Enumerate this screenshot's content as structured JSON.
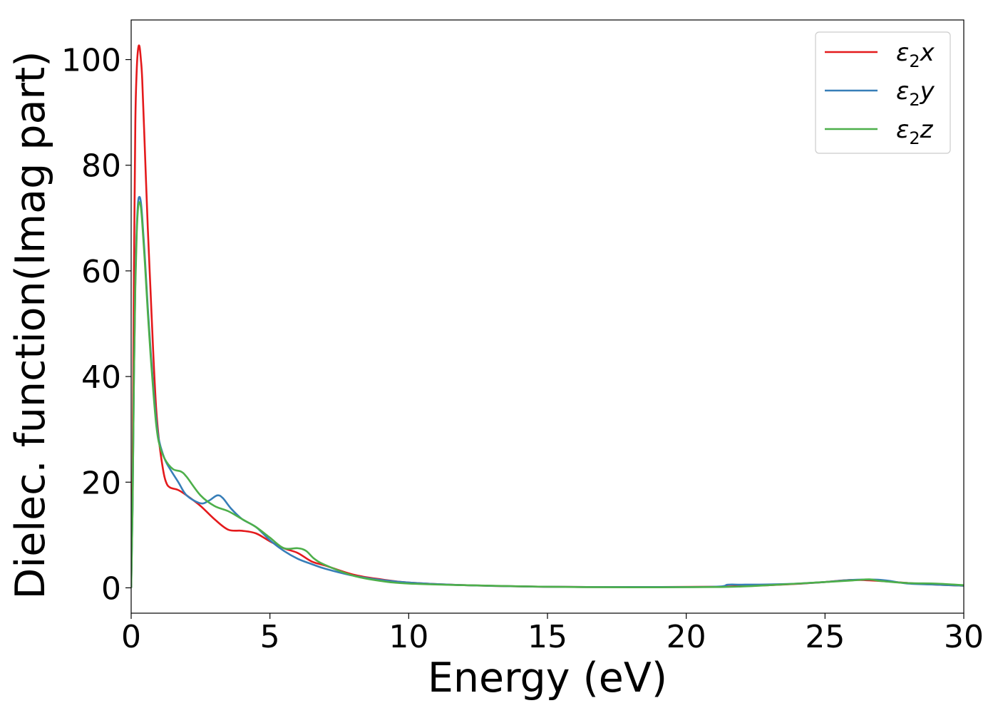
{
  "chart_data": {
    "type": "line",
    "title": "",
    "xlabel": "Energy (eV)",
    "ylabel": "Dielec. function(Imag part)",
    "xlim": [
      0,
      30
    ],
    "ylim": [
      -4.8,
      107.5
    ],
    "xticks": [
      0,
      5,
      10,
      15,
      20,
      25,
      30
    ],
    "yticks": [
      0,
      20,
      40,
      60,
      80,
      100
    ],
    "grid": false,
    "legend_position": "top-right",
    "series": [
      {
        "name": "ε₂x",
        "legend_base": "ε",
        "legend_sub": "2",
        "legend_var": "x",
        "color": "#e41a1c",
        "x": [
          0,
          0.05,
          0.1,
          0.15,
          0.2,
          0.25,
          0.3,
          0.35,
          0.4,
          0.5,
          0.6,
          0.7,
          0.8,
          0.9,
          1.0,
          1.1,
          1.2,
          1.3,
          1.4,
          1.5,
          1.7,
          2.0,
          2.5,
          3.0,
          3.5,
          4.0,
          4.5,
          5.0,
          5.5,
          6.0,
          6.5,
          7.0,
          8.0,
          9.0,
          10.0,
          12.0,
          15.0,
          18.0,
          21.0,
          22.0,
          23.0,
          24.0,
          25.0,
          26.0,
          27.0,
          28.0,
          29.0,
          30.0
        ],
        "y": [
          0,
          20,
          60,
          88,
          98,
          102,
          102.5,
          100,
          96,
          82,
          68,
          56,
          44,
          34,
          28,
          24,
          21,
          19.5,
          19,
          18.8,
          18.5,
          17.5,
          15.5,
          13,
          11,
          10.8,
          10.3,
          8.8,
          7.5,
          6.6,
          5,
          4.2,
          2.5,
          1.6,
          1.0,
          0.5,
          0.2,
          0.15,
          0.2,
          0.35,
          0.5,
          0.75,
          1.1,
          1.5,
          1.3,
          0.9,
          0.6,
          0.4
        ]
      },
      {
        "name": "ε₂y",
        "legend_base": "ε",
        "legend_sub": "2",
        "legend_var": "y",
        "color": "#377eb8",
        "x": [
          0,
          0.05,
          0.1,
          0.15,
          0.2,
          0.25,
          0.3,
          0.35,
          0.4,
          0.5,
          0.6,
          0.7,
          0.8,
          0.9,
          1.0,
          1.2,
          1.4,
          1.7,
          2.0,
          2.5,
          2.8,
          3.1,
          3.3,
          3.6,
          4.0,
          4.5,
          5.0,
          5.5,
          6.0,
          6.5,
          7.0,
          8.0,
          9.0,
          10.0,
          12.0,
          15.0,
          18.0,
          21.0,
          21.5,
          22.0,
          23.0,
          24.0,
          25.0,
          26.0,
          27.0,
          28.0,
          29.0,
          30.0
        ],
        "y": [
          0,
          15,
          40,
          58,
          68,
          73,
          74,
          73,
          70,
          62,
          53,
          45,
          38,
          32,
          28,
          24.5,
          22.5,
          20,
          17.5,
          16,
          16.5,
          17.5,
          17,
          15,
          13,
          11.5,
          9,
          7,
          5.5,
          4.5,
          3.6,
          2.3,
          1.5,
          1.0,
          0.5,
          0.2,
          0.15,
          0.2,
          0.6,
          0.6,
          0.65,
          0.8,
          1.1,
          1.5,
          1.5,
          0.8,
          0.6,
          0.4
        ]
      },
      {
        "name": "ε₂z",
        "legend_base": "ε",
        "legend_sub": "2",
        "legend_var": "z",
        "color": "#4daf4a",
        "x": [
          0,
          0.05,
          0.1,
          0.15,
          0.2,
          0.25,
          0.3,
          0.35,
          0.4,
          0.5,
          0.6,
          0.7,
          0.8,
          0.9,
          1.0,
          1.2,
          1.5,
          1.8,
          2.0,
          2.5,
          3.0,
          3.5,
          4.0,
          4.5,
          5.0,
          5.5,
          6.0,
          6.3,
          6.6,
          7.0,
          8.0,
          9.0,
          10.0,
          12.0,
          15.0,
          18.0,
          21.0,
          22.0,
          23.0,
          24.0,
          25.0,
          26.0,
          26.6,
          27.0,
          28.0,
          29.0,
          30.0
        ],
        "y": [
          0,
          15,
          40,
          57,
          67,
          72,
          73,
          72,
          69,
          61,
          52,
          44,
          37,
          31,
          27.5,
          24.5,
          22.5,
          22,
          21,
          17.5,
          15.5,
          14.5,
          13,
          11.5,
          9.5,
          7.5,
          7.5,
          7,
          5.5,
          4.3,
          2.3,
          1.3,
          0.8,
          0.5,
          0.2,
          0.1,
          0.15,
          0.25,
          0.5,
          0.8,
          1.1,
          1.4,
          1.6,
          1.3,
          0.9,
          0.8,
          0.5
        ]
      }
    ]
  }
}
